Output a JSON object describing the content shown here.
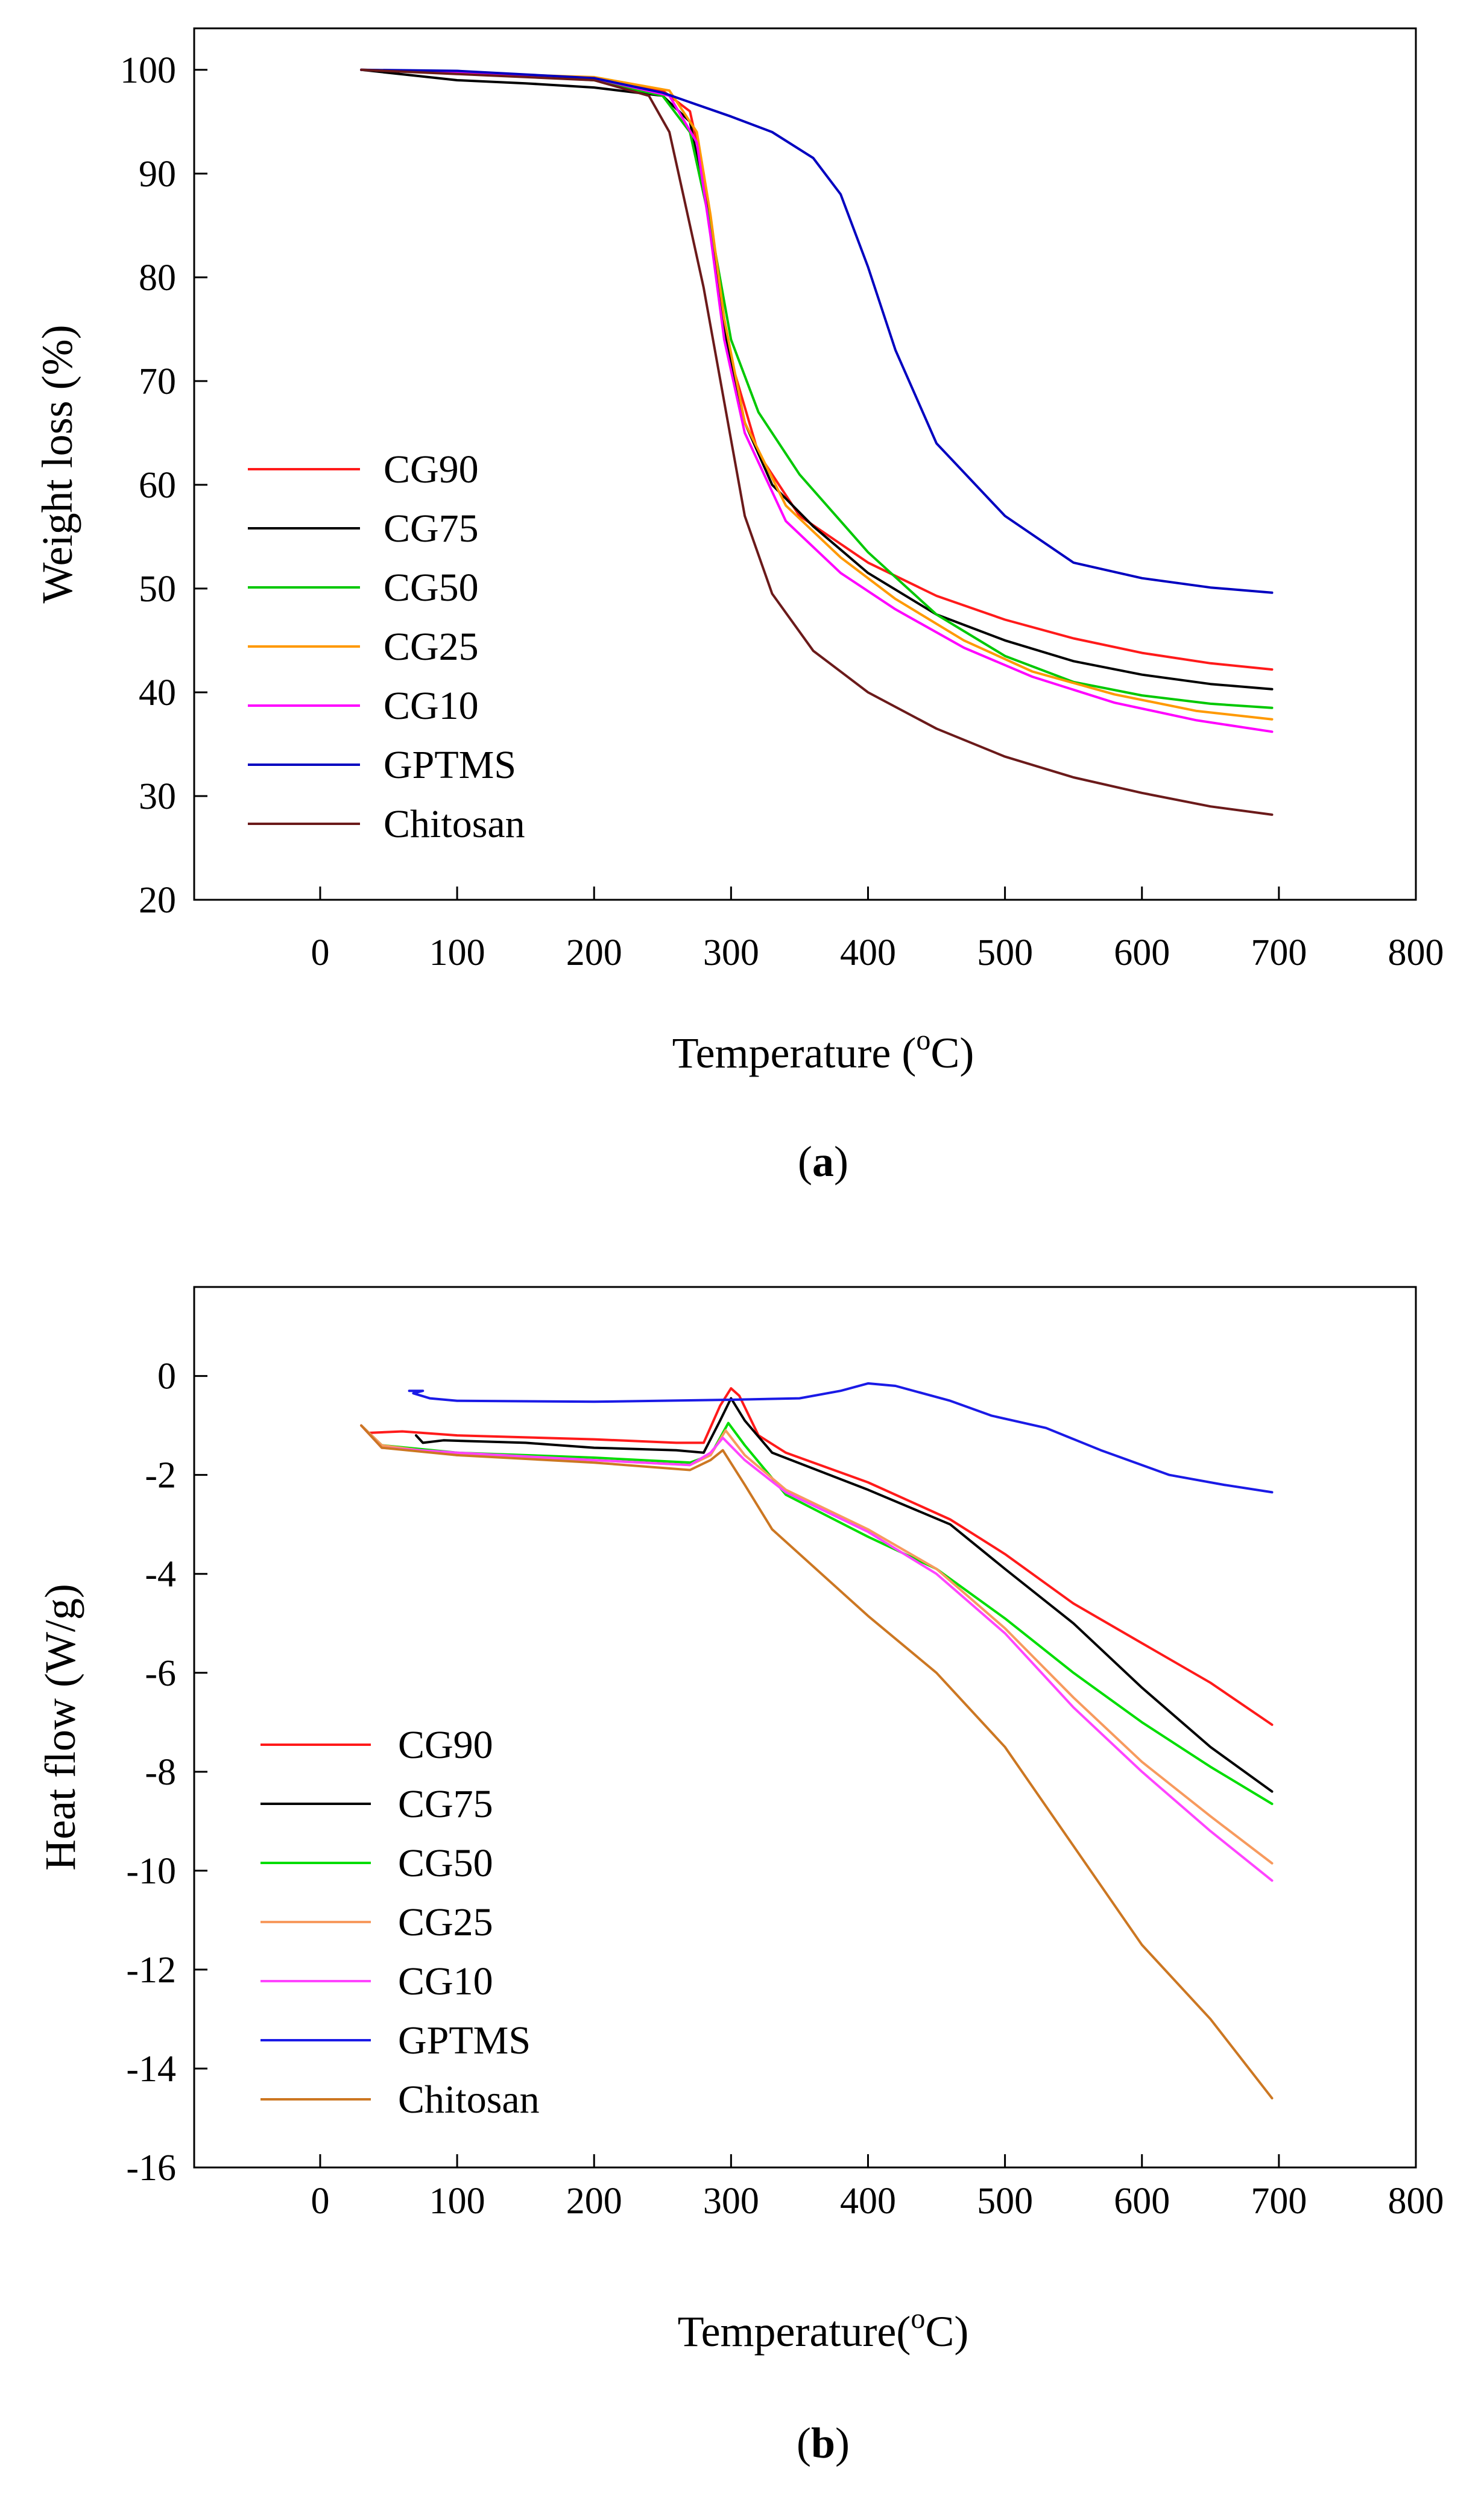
{
  "chart_data": [
    {
      "type": "line",
      "panel_label": "a",
      "xlabel": "Temperature (",
      "xlabel_sup": "o",
      "xlabel_end": "C)",
      "ylabel": "Weight loss (%)",
      "xlim": [
        -92,
        800
      ],
      "ylim": [
        20,
        104
      ],
      "xticks": [
        0,
        100,
        200,
        300,
        400,
        500,
        600,
        700,
        800
      ],
      "yticks": [
        20,
        30,
        40,
        50,
        60,
        70,
        80,
        90,
        100
      ],
      "grid": false,
      "legend": "left-center",
      "series": [
        {
          "name": "CG90",
          "color": "#ff1a1a",
          "points": [
            [
              30,
              100
            ],
            [
              100,
              99.8
            ],
            [
              200,
              99.2
            ],
            [
              250,
              98
            ],
            [
              270,
              96
            ],
            [
              280,
              90
            ],
            [
              290,
              80
            ],
            [
              300,
              72
            ],
            [
              320,
              63
            ],
            [
              350,
              57
            ],
            [
              400,
              52.5
            ],
            [
              450,
              49.3
            ],
            [
              500,
              47
            ],
            [
              550,
              45.2
            ],
            [
              600,
              43.8
            ],
            [
              650,
              42.8
            ],
            [
              695,
              42.2
            ]
          ]
        },
        {
          "name": "CG75",
          "color": "#000000",
          "points": [
            [
              30,
              100
            ],
            [
              100,
              99
            ],
            [
              150,
              98.7
            ],
            [
              200,
              98.3
            ],
            [
              250,
              97.5
            ],
            [
              270,
              95
            ],
            [
              285,
              85
            ],
            [
              295,
              75
            ],
            [
              310,
              66
            ],
            [
              330,
              60
            ],
            [
              360,
              56
            ],
            [
              400,
              51.5
            ],
            [
              450,
              47.5
            ],
            [
              500,
              45
            ],
            [
              550,
              43
            ],
            [
              600,
              41.7
            ],
            [
              650,
              40.8
            ],
            [
              695,
              40.3
            ]
          ]
        },
        {
          "name": "CG50",
          "color": "#00c800",
          "points": [
            [
              30,
              100
            ],
            [
              100,
              99.8
            ],
            [
              200,
              99
            ],
            [
              250,
              97.5
            ],
            [
              270,
              94
            ],
            [
              285,
              85
            ],
            [
              300,
              74
            ],
            [
              320,
              67
            ],
            [
              350,
              61
            ],
            [
              400,
              53.5
            ],
            [
              450,
              47.5
            ],
            [
              500,
              43.5
            ],
            [
              550,
              41
            ],
            [
              600,
              39.7
            ],
            [
              650,
              38.9
            ],
            [
              695,
              38.5
            ]
          ]
        },
        {
          "name": "CG25",
          "color": "#ff9900",
          "points": [
            [
              30,
              100
            ],
            [
              200,
              99.3
            ],
            [
              255,
              98
            ],
            [
              275,
              94
            ],
            [
              285,
              86
            ],
            [
              295,
              76
            ],
            [
              310,
              66
            ],
            [
              340,
              58
            ],
            [
              380,
              53
            ],
            [
              420,
              49
            ],
            [
              470,
              45
            ],
            [
              520,
              42
            ],
            [
              580,
              39.8
            ],
            [
              640,
              38.2
            ],
            [
              695,
              37.4
            ]
          ]
        },
        {
          "name": "CG10",
          "color": "#ff00ff",
          "points": [
            [
              30,
              100
            ],
            [
              200,
              99.2
            ],
            [
              255,
              97.5
            ],
            [
              275,
              93
            ],
            [
              285,
              84
            ],
            [
              295,
              74
            ],
            [
              310,
              65
            ],
            [
              340,
              56.5
            ],
            [
              380,
              51.5
            ],
            [
              420,
              48
            ],
            [
              470,
              44.3
            ],
            [
              520,
              41.5
            ],
            [
              580,
              39
            ],
            [
              640,
              37.3
            ],
            [
              695,
              36.2
            ]
          ]
        },
        {
          "name": "GPTMS",
          "color": "#0000c0",
          "points": [
            [
              30,
              100
            ],
            [
              100,
              99.9
            ],
            [
              200,
              99.2
            ],
            [
              250,
              97.8
            ],
            [
              300,
              95.5
            ],
            [
              330,
              94
            ],
            [
              360,
              91.5
            ],
            [
              380,
              88
            ],
            [
              400,
              81
            ],
            [
              420,
              73
            ],
            [
              450,
              64
            ],
            [
              500,
              57
            ],
            [
              550,
              52.5
            ],
            [
              600,
              51
            ],
            [
              650,
              50.1
            ],
            [
              695,
              49.6
            ]
          ]
        },
        {
          "name": "Chitosan",
          "color": "#6b1a1a",
          "points": [
            [
              30,
              100
            ],
            [
              100,
              99.6
            ],
            [
              200,
              99
            ],
            [
              240,
              97.5
            ],
            [
              255,
              94
            ],
            [
              265,
              88
            ],
            [
              280,
              79
            ],
            [
              295,
              68
            ],
            [
              310,
              57
            ],
            [
              330,
              49.5
            ],
            [
              360,
              44
            ],
            [
              400,
              40
            ],
            [
              450,
              36.5
            ],
            [
              500,
              33.8
            ],
            [
              550,
              31.8
            ],
            [
              600,
              30.3
            ],
            [
              650,
              29
            ],
            [
              695,
              28.2
            ]
          ]
        }
      ]
    },
    {
      "type": "line",
      "panel_label": "b",
      "xlabel": "Temperature(",
      "xlabel_sup": "o",
      "xlabel_end": "C)",
      "ylabel": "Heat flow (W/g)",
      "xlim": [
        -92,
        800
      ],
      "ylim": [
        -16,
        1.8
      ],
      "xticks": [
        0,
        100,
        200,
        300,
        400,
        500,
        600,
        700,
        800
      ],
      "yticks": [
        -16,
        -14,
        -12,
        -10,
        -8,
        -6,
        -4,
        -2,
        0
      ],
      "grid": false,
      "legend": "bottom-left",
      "series": [
        {
          "name": "CG90",
          "color": "#ff1a1a",
          "points": [
            [
              30,
              -1
            ],
            [
              35,
              -1.15
            ],
            [
              60,
              -1.12
            ],
            [
              100,
              -1.2
            ],
            [
              200,
              -1.28
            ],
            [
              260,
              -1.35
            ],
            [
              280,
              -1.35
            ],
            [
              292,
              -0.6
            ],
            [
              300,
              -0.25
            ],
            [
              306,
              -0.4
            ],
            [
              320,
              -1.2
            ],
            [
              340,
              -1.55
            ],
            [
              400,
              -2.15
            ],
            [
              460,
              -2.9
            ],
            [
              500,
              -3.6
            ],
            [
              550,
              -4.6
            ],
            [
              600,
              -5.4
            ],
            [
              650,
              -6.2
            ],
            [
              695,
              -7.05
            ]
          ]
        },
        {
          "name": "CG75",
          "color": "#000000",
          "points": [
            [
              70,
              -1.2
            ],
            [
              75,
              -1.35
            ],
            [
              90,
              -1.3
            ],
            [
              150,
              -1.35
            ],
            [
              200,
              -1.45
            ],
            [
              260,
              -1.5
            ],
            [
              280,
              -1.55
            ],
            [
              292,
              -0.9
            ],
            [
              300,
              -0.45
            ],
            [
              310,
              -0.9
            ],
            [
              330,
              -1.55
            ],
            [
              400,
              -2.3
            ],
            [
              460,
              -3
            ],
            [
              500,
              -3.9
            ],
            [
              550,
              -5
            ],
            [
              600,
              -6.3
            ],
            [
              650,
              -7.5
            ],
            [
              695,
              -8.4
            ]
          ]
        },
        {
          "name": "CG50",
          "color": "#00dd00",
          "points": [
            [
              30,
              -1
            ],
            [
              45,
              -1.4
            ],
            [
              100,
              -1.55
            ],
            [
              200,
              -1.65
            ],
            [
              270,
              -1.75
            ],
            [
              285,
              -1.6
            ],
            [
              298,
              -0.95
            ],
            [
              310,
              -1.4
            ],
            [
              340,
              -2.4
            ],
            [
              400,
              -3.25
            ],
            [
              450,
              -3.9
            ],
            [
              500,
              -4.9
            ],
            [
              550,
              -6
            ],
            [
              600,
              -7
            ],
            [
              650,
              -7.9
            ],
            [
              695,
              -8.65
            ]
          ]
        },
        {
          "name": "CG25",
          "color": "#f79a5e",
          "points": [
            [
              30,
              -1
            ],
            [
              45,
              -1.4
            ],
            [
              100,
              -1.6
            ],
            [
              200,
              -1.7
            ],
            [
              270,
              -1.8
            ],
            [
              285,
              -1.6
            ],
            [
              296,
              -1.1
            ],
            [
              310,
              -1.6
            ],
            [
              340,
              -2.3
            ],
            [
              400,
              -3.1
            ],
            [
              450,
              -3.9
            ],
            [
              500,
              -5.1
            ],
            [
              550,
              -6.5
            ],
            [
              600,
              -7.8
            ],
            [
              650,
              -8.9
            ],
            [
              695,
              -9.85
            ]
          ]
        },
        {
          "name": "CG10",
          "color": "#ff44ff",
          "points": [
            [
              30,
              -1
            ],
            [
              45,
              -1.45
            ],
            [
              100,
              -1.55
            ],
            [
              200,
              -1.7
            ],
            [
              270,
              -1.8
            ],
            [
              285,
              -1.55
            ],
            [
              294,
              -1.25
            ],
            [
              310,
              -1.7
            ],
            [
              340,
              -2.35
            ],
            [
              400,
              -3.15
            ],
            [
              450,
              -4
            ],
            [
              500,
              -5.2
            ],
            [
              550,
              -6.7
            ],
            [
              600,
              -8
            ],
            [
              650,
              -9.2
            ],
            [
              695,
              -10.2
            ]
          ]
        },
        {
          "name": "GPTMS",
          "color": "#1a1ae6",
          "points": [
            [
              65,
              -0.3
            ],
            [
              75,
              -0.3
            ],
            [
              68,
              -0.35
            ],
            [
              80,
              -0.45
            ],
            [
              100,
              -0.5
            ],
            [
              200,
              -0.52
            ],
            [
              300,
              -0.48
            ],
            [
              350,
              -0.45
            ],
            [
              380,
              -0.3
            ],
            [
              400,
              -0.15
            ],
            [
              420,
              -0.2
            ],
            [
              460,
              -0.5
            ],
            [
              490,
              -0.8
            ],
            [
              530,
              -1.05
            ],
            [
              570,
              -1.5
            ],
            [
              620,
              -2
            ],
            [
              660,
              -2.2
            ],
            [
              695,
              -2.35
            ]
          ]
        },
        {
          "name": "Chitosan",
          "color": "#cc7722",
          "points": [
            [
              30,
              -1
            ],
            [
              45,
              -1.45
            ],
            [
              100,
              -1.6
            ],
            [
              200,
              -1.75
            ],
            [
              270,
              -1.9
            ],
            [
              285,
              -1.7
            ],
            [
              294,
              -1.5
            ],
            [
              310,
              -2.2
            ],
            [
              330,
              -3.1
            ],
            [
              400,
              -4.85
            ],
            [
              450,
              -6
            ],
            [
              500,
              -7.5
            ],
            [
              550,
              -9.5
            ],
            [
              600,
              -11.5
            ],
            [
              650,
              -13
            ],
            [
              695,
              -14.6
            ]
          ]
        }
      ]
    }
  ]
}
